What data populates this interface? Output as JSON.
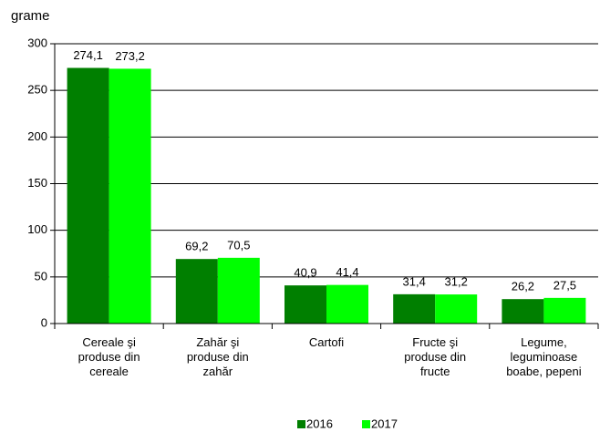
{
  "chart_data": {
    "type": "bar",
    "y_label": "grame",
    "categories": [
      "Cereale şi\nproduse din\ncereale",
      "Zahăr şi\nproduse din\nzahăr",
      "Cartofi",
      "Fructe şi\nproduse din\nfructe",
      "Legume,\nleguminoase\nboabe, pepeni"
    ],
    "series": [
      {
        "name": "2016",
        "color": "#007f00",
        "values": [
          274.1,
          69.2,
          40.9,
          31.4,
          26.2
        ],
        "value_labels": [
          "274,1",
          "69,2",
          "40,9",
          "31,4",
          "26,2"
        ]
      },
      {
        "name": "2017",
        "color": "#00ff00",
        "values": [
          273.2,
          70.5,
          41.4,
          31.2,
          27.5
        ],
        "value_labels": [
          "273,2",
          "70,5",
          "41,4",
          "31,2",
          "27,5"
        ]
      }
    ],
    "ylim": [
      0,
      300
    ],
    "yticks": [
      0,
      50,
      100,
      150,
      200,
      250,
      300
    ],
    "grid": true,
    "legend": "bottom"
  }
}
